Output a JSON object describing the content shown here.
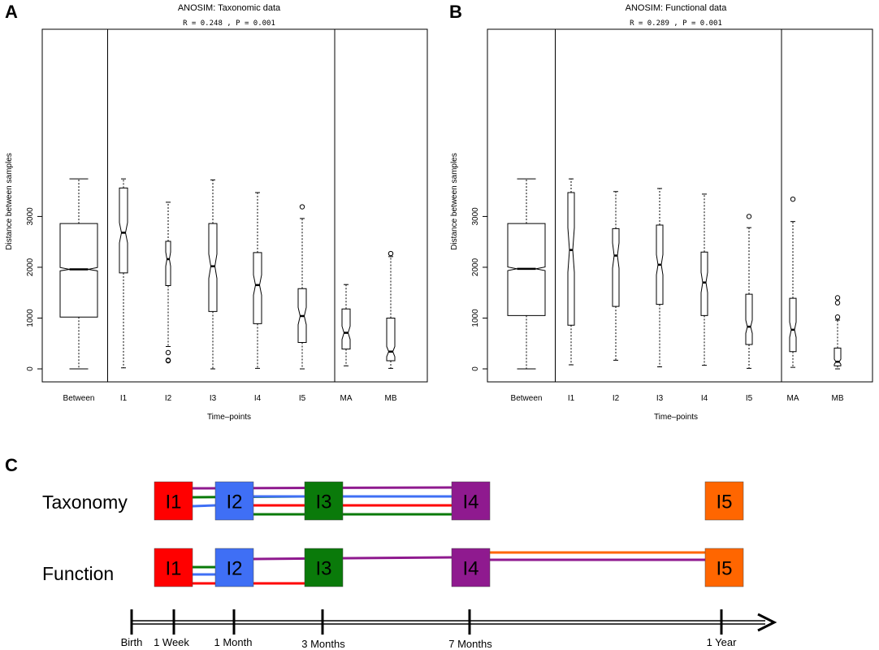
{
  "panels": [
    {
      "letter": "A",
      "title": "ANOSIM: Taxonomic data",
      "stats": "R = 0.248 ,  P = 0.001",
      "ylabel": "Distance between samples",
      "xlabel": "Time–points"
    },
    {
      "letter": "B",
      "title": "ANOSIM: Functional data",
      "stats": "R = 0.289 ,  P = 0.001",
      "ylabel": "Distance between samples",
      "xlabel": "Time–points"
    }
  ],
  "chart_data": [
    {
      "type": "box",
      "title": "ANOSIM: Taxonomic data",
      "subtitle": "R = 0.248 ,  P = 0.001",
      "xlabel": "Time–points",
      "ylabel": "Distance between samples",
      "ylim": [
        0,
        3800
      ],
      "yticks": [
        0,
        1000,
        2000,
        3000
      ],
      "categories": [
        "Between",
        "I1",
        "I2",
        "I3",
        "I4",
        "I5",
        "MA",
        "MB"
      ],
      "boxes": [
        {
          "name": "Between",
          "min": 0,
          "q1": 1020,
          "median": 1960,
          "q3": 2860,
          "max": 3740,
          "notch": [
            1930,
            1995
          ],
          "outliers": []
        },
        {
          "name": "I1",
          "min": 20,
          "q1": 1890,
          "median": 2680,
          "q3": 3560,
          "max": 3740,
          "notch": [
            2480,
            2880
          ],
          "outliers": []
        },
        {
          "name": "I2",
          "min": 440,
          "q1": 1640,
          "median": 2160,
          "q3": 2510,
          "max": 3280,
          "notch": [
            2020,
            2300
          ],
          "outliers": [
            320,
            170,
            160
          ]
        },
        {
          "name": "I3",
          "min": 0,
          "q1": 1130,
          "median": 2020,
          "q3": 2860,
          "max": 3720,
          "notch": [
            1780,
            2260
          ],
          "outliers": []
        },
        {
          "name": "I4",
          "min": 10,
          "q1": 890,
          "median": 1650,
          "q3": 2290,
          "max": 3470,
          "notch": [
            1450,
            1850
          ],
          "outliers": []
        },
        {
          "name": "I5",
          "min": 0,
          "q1": 520,
          "median": 1040,
          "q3": 1580,
          "max": 2960,
          "notch": [
            870,
            1210
          ],
          "outliers": [
            3190
          ]
        },
        {
          "name": "MA",
          "min": 60,
          "q1": 390,
          "median": 710,
          "q3": 1180,
          "max": 1660,
          "notch": [
            580,
            840
          ],
          "outliers": []
        },
        {
          "name": "MB",
          "min": 10,
          "q1": 160,
          "median": 340,
          "q3": 1000,
          "max": 2210,
          "notch": [
            240,
            440
          ],
          "outliers": [
            2270
          ]
        }
      ],
      "separators_after": [
        "Between",
        "I5"
      ]
    },
    {
      "type": "box",
      "title": "ANOSIM: Functional data",
      "subtitle": "R = 0.289 ,  P = 0.001",
      "xlabel": "Time–points",
      "ylabel": "Distance between samples",
      "ylim": [
        0,
        3800
      ],
      "yticks": [
        0,
        1000,
        2000,
        3000
      ],
      "categories": [
        "Between",
        "I1",
        "I2",
        "I3",
        "I4",
        "I5",
        "MA",
        "MB"
      ],
      "boxes": [
        {
          "name": "Between",
          "min": 0,
          "q1": 1050,
          "median": 1970,
          "q3": 2860,
          "max": 3740,
          "notch": [
            1935,
            2005
          ],
          "outliers": []
        },
        {
          "name": "I1",
          "min": 80,
          "q1": 860,
          "median": 2340,
          "q3": 3470,
          "max": 3740,
          "notch": [
            1900,
            2780
          ],
          "outliers": []
        },
        {
          "name": "I2",
          "min": 170,
          "q1": 1230,
          "median": 2230,
          "q3": 2760,
          "max": 3490,
          "notch": [
            1980,
            2480
          ],
          "outliers": []
        },
        {
          "name": "I3",
          "min": 40,
          "q1": 1270,
          "median": 2050,
          "q3": 2830,
          "max": 3550,
          "notch": [
            1850,
            2250
          ],
          "outliers": []
        },
        {
          "name": "I4",
          "min": 70,
          "q1": 1050,
          "median": 1700,
          "q3": 2300,
          "max": 3440,
          "notch": [
            1500,
            1900
          ],
          "outliers": []
        },
        {
          "name": "I5",
          "min": 10,
          "q1": 480,
          "median": 830,
          "q3": 1470,
          "max": 2780,
          "notch": [
            700,
            960
          ],
          "outliers": [
            3000
          ]
        },
        {
          "name": "MA",
          "min": 30,
          "q1": 340,
          "median": 770,
          "q3": 1390,
          "max": 2900,
          "notch": [
            620,
            920
          ],
          "outliers": [
            3340
          ]
        },
        {
          "name": "MB",
          "min": 0,
          "q1": 60,
          "median": 140,
          "q3": 410,
          "max": 960,
          "notch": [
            90,
            190
          ],
          "outliers": [
            1400,
            1300,
            1020
          ]
        }
      ],
      "separators_after": [
        "Between",
        "I5"
      ]
    }
  ],
  "timeline": {
    "letter": "C",
    "rows": [
      {
        "label": "Taxonomy",
        "boxes": [
          {
            "label": "I1",
            "color": "#ff0000"
          },
          {
            "label": "I2",
            "color": "#3f6ff5"
          },
          {
            "label": "I3",
            "color": "#0a7a0a"
          },
          {
            "label": "I4",
            "color": "#8f1a8f"
          },
          {
            "label": "I5",
            "color": "#ff6600"
          }
        ],
        "links": [
          {
            "from": "I1",
            "to": "I4",
            "color": "#8f1a8f"
          },
          {
            "from": "I1",
            "to": "I3",
            "color": "#0a7a0a"
          },
          {
            "from": "I1",
            "to": "I2",
            "color": "#3f6ff5"
          },
          {
            "from": "I2",
            "to": "I4",
            "color": "#0a7a0a"
          },
          {
            "from": "I2",
            "to": "I4",
            "color": "#3f6ff5"
          },
          {
            "from": "I2",
            "to": "I4",
            "color": "#ff0000"
          }
        ]
      },
      {
        "label": "Function",
        "boxes": [
          {
            "label": "I1",
            "color": "#ff0000"
          },
          {
            "label": "I2",
            "color": "#3f6ff5"
          },
          {
            "label": "I3",
            "color": "#0a7a0a"
          },
          {
            "label": "I4",
            "color": "#8f1a8f"
          },
          {
            "label": "I5",
            "color": "#ff6600"
          }
        ],
        "links": [
          {
            "from": "I2",
            "to": "I4",
            "color": "#8f1a8f"
          },
          {
            "from": "I1",
            "to": "I2",
            "color": "#0a7a0a"
          },
          {
            "from": "I1",
            "to": "I2",
            "color": "#3f6ff5"
          },
          {
            "from": "I1",
            "to": "I3",
            "color": "#ff0000"
          },
          {
            "from": "I4",
            "to": "I5",
            "color": "#ff6600"
          },
          {
            "from": "I4",
            "to": "I5",
            "color": "#8f1a8f"
          }
        ]
      }
    ],
    "axis_ticks": [
      "Birth",
      "1 Week",
      "1 Month",
      "3 Months",
      "7 Months",
      "1 Year"
    ]
  }
}
